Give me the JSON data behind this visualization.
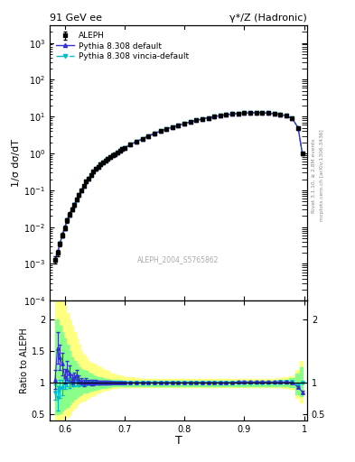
{
  "title_left": "91 GeV ee",
  "title_right": "γ*/Z (Hadronic)",
  "ylabel_main": "1/σ dσ/dT",
  "ylabel_ratio": "Ratio to ALEPH",
  "xlabel": "T",
  "right_label_top": "Rivet 3.1.10, ≥ 2.8M events",
  "right_label_bot": "mcplots.cern.ch [arXiv:1306.3436]",
  "watermark": "ALEPH_2004_S5765862",
  "legend": [
    "ALEPH",
    "Pythia 8.308 default",
    "Pythia 8.308 vincia-default"
  ],
  "T_values": [
    0.584,
    0.588,
    0.592,
    0.596,
    0.6,
    0.604,
    0.608,
    0.612,
    0.616,
    0.62,
    0.624,
    0.628,
    0.632,
    0.636,
    0.64,
    0.644,
    0.648,
    0.652,
    0.656,
    0.66,
    0.664,
    0.668,
    0.672,
    0.676,
    0.68,
    0.684,
    0.688,
    0.692,
    0.696,
    0.7,
    0.71,
    0.72,
    0.73,
    0.74,
    0.75,
    0.76,
    0.77,
    0.78,
    0.79,
    0.8,
    0.81,
    0.82,
    0.83,
    0.84,
    0.85,
    0.86,
    0.87,
    0.88,
    0.89,
    0.9,
    0.91,
    0.92,
    0.93,
    0.94,
    0.95,
    0.96,
    0.97,
    0.98,
    0.99,
    0.997
  ],
  "data_values": [
    0.0013,
    0.002,
    0.0035,
    0.006,
    0.0095,
    0.015,
    0.022,
    0.03,
    0.04,
    0.055,
    0.075,
    0.1,
    0.13,
    0.17,
    0.21,
    0.26,
    0.32,
    0.38,
    0.44,
    0.5,
    0.57,
    0.64,
    0.72,
    0.8,
    0.88,
    0.97,
    1.07,
    1.18,
    1.3,
    1.43,
    1.75,
    2.1,
    2.5,
    3.0,
    3.5,
    4.0,
    4.6,
    5.2,
    5.8,
    6.5,
    7.2,
    7.9,
    8.6,
    9.3,
    10.0,
    10.7,
    11.3,
    11.8,
    12.2,
    12.5,
    12.7,
    12.8,
    12.7,
    12.4,
    12.0,
    11.5,
    10.5,
    9.0,
    5.0,
    1.0
  ],
  "data_errors": [
    0.0003,
    0.0004,
    0.0005,
    0.0008,
    0.0012,
    0.002,
    0.003,
    0.003,
    0.004,
    0.005,
    0.006,
    0.007,
    0.008,
    0.009,
    0.01,
    0.011,
    0.013,
    0.015,
    0.016,
    0.018,
    0.02,
    0.022,
    0.024,
    0.026,
    0.028,
    0.03,
    0.033,
    0.036,
    0.04,
    0.044,
    0.05,
    0.06,
    0.07,
    0.08,
    0.09,
    0.1,
    0.11,
    0.13,
    0.14,
    0.16,
    0.17,
    0.19,
    0.2,
    0.22,
    0.23,
    0.25,
    0.26,
    0.27,
    0.28,
    0.28,
    0.28,
    0.28,
    0.27,
    0.26,
    0.25,
    0.24,
    0.22,
    0.19,
    0.13,
    0.05
  ],
  "ratio1_values": [
    1.05,
    1.55,
    1.4,
    1.3,
    1.1,
    1.2,
    1.15,
    1.05,
    1.08,
    1.12,
    1.05,
    1.02,
    1.0,
    1.02,
    1.01,
    1.0,
    1.0,
    1.01,
    1.0,
    1.0,
    1.0,
    1.0,
    1.0,
    1.0,
    1.0,
    1.0,
    1.0,
    1.0,
    1.0,
    1.0,
    1.0,
    1.0,
    1.0,
    1.0,
    1.0,
    1.0,
    1.0,
    1.0,
    1.0,
    1.0,
    1.0,
    1.0,
    1.0,
    1.0,
    1.0,
    1.0,
    1.0,
    1.0,
    1.01,
    1.01,
    1.01,
    1.01,
    1.01,
    1.01,
    1.01,
    1.01,
    1.01,
    1.0,
    0.93,
    0.85
  ],
  "ratio2_values": [
    0.85,
    0.75,
    0.9,
    0.92,
    0.98,
    1.05,
    1.0,
    1.0,
    1.0,
    1.02,
    1.0,
    1.0,
    1.0,
    1.0,
    1.0,
    1.0,
    1.0,
    1.0,
    1.0,
    1.0,
    1.0,
    1.0,
    1.0,
    1.0,
    1.0,
    1.0,
    1.0,
    1.0,
    1.0,
    1.0,
    1.0,
    1.0,
    1.0,
    1.0,
    1.0,
    1.0,
    1.0,
    1.0,
    1.0,
    1.0,
    1.0,
    1.0,
    1.0,
    1.0,
    1.0,
    1.0,
    1.0,
    1.0,
    1.0,
    1.0,
    1.0,
    1.0,
    1.0,
    1.0,
    1.0,
    1.01,
    1.01,
    1.01,
    0.96,
    1.0
  ],
  "ratio1_errors": [
    0.15,
    0.25,
    0.2,
    0.18,
    0.12,
    0.15,
    0.12,
    0.08,
    0.08,
    0.08,
    0.06,
    0.05,
    0.05,
    0.05,
    0.04,
    0.04,
    0.04,
    0.04,
    0.03,
    0.03,
    0.03,
    0.03,
    0.03,
    0.03,
    0.02,
    0.02,
    0.02,
    0.02,
    0.02,
    0.02,
    0.02,
    0.02,
    0.02,
    0.02,
    0.02,
    0.02,
    0.02,
    0.02,
    0.02,
    0.02,
    0.02,
    0.02,
    0.02,
    0.02,
    0.02,
    0.02,
    0.02,
    0.02,
    0.02,
    0.02,
    0.02,
    0.02,
    0.02,
    0.02,
    0.02,
    0.02,
    0.02,
    0.02,
    0.02,
    0.02
  ],
  "ratio2_errors": [
    0.12,
    0.2,
    0.15,
    0.12,
    0.08,
    0.1,
    0.08,
    0.06,
    0.06,
    0.06,
    0.05,
    0.04,
    0.04,
    0.04,
    0.03,
    0.03,
    0.03,
    0.03,
    0.03,
    0.03,
    0.03,
    0.03,
    0.02,
    0.02,
    0.02,
    0.02,
    0.02,
    0.02,
    0.02,
    0.02,
    0.02,
    0.02,
    0.02,
    0.02,
    0.02,
    0.02,
    0.02,
    0.02,
    0.02,
    0.02,
    0.02,
    0.02,
    0.02,
    0.02,
    0.02,
    0.02,
    0.02,
    0.02,
    0.02,
    0.02,
    0.02,
    0.02,
    0.02,
    0.02,
    0.02,
    0.02,
    0.02,
    0.02,
    0.02,
    0.02
  ],
  "band_yellow_lo": [
    0.38,
    0.38,
    0.38,
    0.4,
    0.42,
    0.45,
    0.5,
    0.55,
    0.6,
    0.65,
    0.68,
    0.7,
    0.72,
    0.74,
    0.76,
    0.78,
    0.8,
    0.82,
    0.84,
    0.86,
    0.87,
    0.88,
    0.89,
    0.9,
    0.91,
    0.92,
    0.92,
    0.93,
    0.93,
    0.93,
    0.93,
    0.93,
    0.93,
    0.93,
    0.93,
    0.93,
    0.93,
    0.93,
    0.93,
    0.93,
    0.93,
    0.93,
    0.93,
    0.93,
    0.93,
    0.93,
    0.93,
    0.93,
    0.93,
    0.93,
    0.93,
    0.93,
    0.93,
    0.93,
    0.93,
    0.93,
    0.92,
    0.9,
    0.75,
    0.68
  ],
  "band_yellow_hi": [
    2.5,
    2.5,
    2.5,
    2.4,
    2.3,
    2.1,
    2.0,
    1.9,
    1.8,
    1.7,
    1.6,
    1.5,
    1.45,
    1.4,
    1.35,
    1.32,
    1.3,
    1.28,
    1.26,
    1.24,
    1.22,
    1.2,
    1.18,
    1.16,
    1.14,
    1.13,
    1.12,
    1.11,
    1.1,
    1.09,
    1.08,
    1.07,
    1.06,
    1.06,
    1.06,
    1.06,
    1.06,
    1.06,
    1.06,
    1.06,
    1.06,
    1.06,
    1.06,
    1.06,
    1.06,
    1.06,
    1.06,
    1.06,
    1.06,
    1.06,
    1.06,
    1.06,
    1.06,
    1.06,
    1.06,
    1.07,
    1.08,
    1.1,
    1.2,
    1.35
  ],
  "band_green_lo": [
    0.5,
    0.5,
    0.52,
    0.55,
    0.58,
    0.62,
    0.66,
    0.7,
    0.74,
    0.77,
    0.8,
    0.82,
    0.84,
    0.85,
    0.86,
    0.87,
    0.88,
    0.89,
    0.9,
    0.91,
    0.92,
    0.92,
    0.93,
    0.93,
    0.94,
    0.94,
    0.94,
    0.95,
    0.95,
    0.95,
    0.95,
    0.95,
    0.95,
    0.95,
    0.95,
    0.95,
    0.95,
    0.95,
    0.95,
    0.95,
    0.95,
    0.95,
    0.95,
    0.95,
    0.95,
    0.95,
    0.95,
    0.95,
    0.95,
    0.95,
    0.95,
    0.95,
    0.95,
    0.95,
    0.95,
    0.95,
    0.94,
    0.93,
    0.82,
    0.78
  ],
  "band_green_hi": [
    2.0,
    2.0,
    1.9,
    1.8,
    1.7,
    1.6,
    1.5,
    1.4,
    1.35,
    1.3,
    1.25,
    1.22,
    1.2,
    1.18,
    1.16,
    1.14,
    1.12,
    1.1,
    1.09,
    1.08,
    1.07,
    1.06,
    1.06,
    1.05,
    1.05,
    1.04,
    1.04,
    1.04,
    1.03,
    1.03,
    1.03,
    1.03,
    1.03,
    1.03,
    1.03,
    1.03,
    1.03,
    1.03,
    1.03,
    1.03,
    1.03,
    1.03,
    1.03,
    1.03,
    1.03,
    1.03,
    1.03,
    1.03,
    1.03,
    1.03,
    1.03,
    1.03,
    1.03,
    1.03,
    1.03,
    1.04,
    1.05,
    1.07,
    1.15,
    1.25
  ],
  "color_data": "#000000",
  "color_pythia_default": "#3333cc",
  "color_pythia_vincia": "#00bbcc",
  "color_yellow": "#ffff80",
  "color_green": "#88ff88",
  "xlim": [
    0.575,
    1.005
  ],
  "ylim_main_lo": 0.0001,
  "ylim_main_hi": 3000,
  "ylim_ratio_lo": 0.4,
  "ylim_ratio_hi": 2.3
}
